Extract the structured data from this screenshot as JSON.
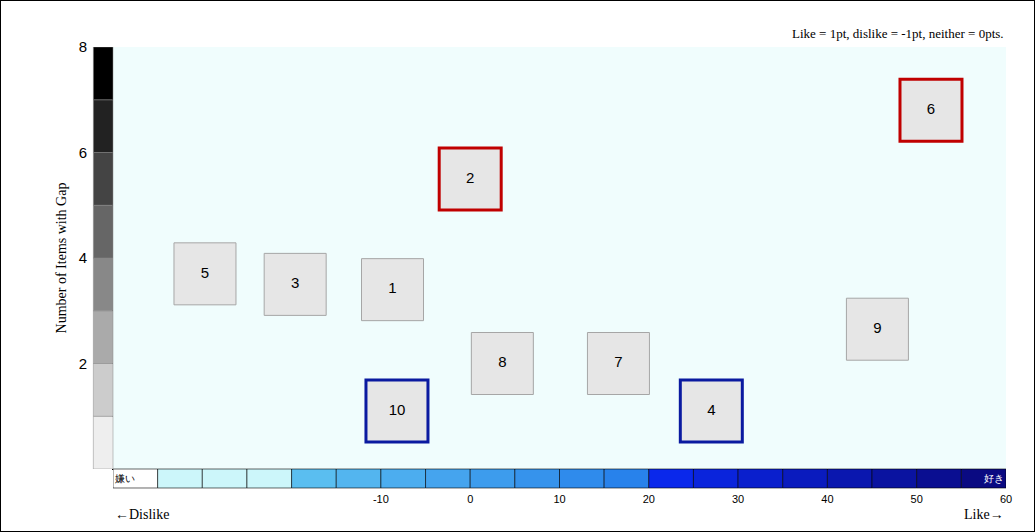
{
  "chart_data": {
    "type": "scatter",
    "note": "Like = 1pt, dislike = -1pt, neither = 0pts.",
    "y_label": "Number of Items with Gap",
    "x_label": {
      "low": "←Dislike",
      "high": "Like→"
    },
    "scale_labels": {
      "low": "嫌い",
      "high": "好き"
    },
    "labels": [
      "1",
      "2",
      "3",
      "4",
      "5",
      "6",
      "7",
      "8",
      "9",
      "10"
    ],
    "x": [
      -8.7,
      0,
      -19.6,
      27,
      -29.7,
      51.6,
      16.6,
      3.6,
      45.6,
      -8.2
    ],
    "values": [
      3.4,
      5.5,
      3.5,
      1.1,
      3.7,
      6.8,
      2.0,
      2.0,
      2.65,
      1.1
    ],
    "colors": [
      "#a6a6a6",
      "#c00000",
      "#a6a6a6",
      "#0a1aa0",
      "#a6a6a6",
      "#c00000",
      "#a6a6a6",
      "#a6a6a6",
      "#a6a6a6",
      "#0a1aa0"
    ],
    "marker": "square",
    "xlim": [
      -40,
      60
    ],
    "xticks": [
      -10,
      0,
      10,
      20,
      30,
      40,
      50,
      60
    ],
    "ylim": [
      0,
      8
    ],
    "yticks": [
      2,
      4,
      6,
      8
    ],
    "grid": false
  }
}
